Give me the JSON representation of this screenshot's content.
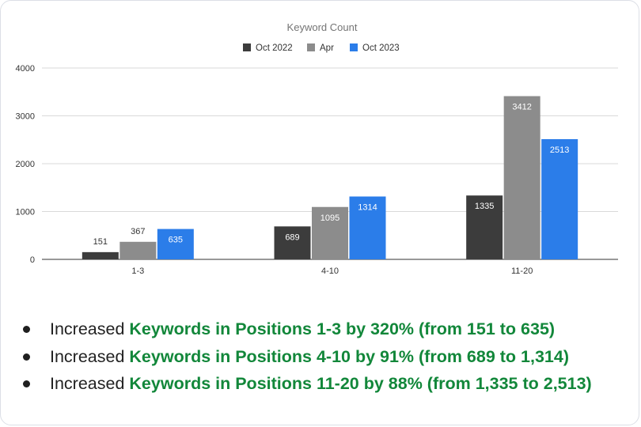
{
  "chart_data": {
    "type": "bar",
    "title": "Keyword Count",
    "xlabel": "",
    "ylabel": "",
    "categories": [
      "1-3",
      "4-10",
      "11-20"
    ],
    "series": [
      {
        "name": "Oct 2022",
        "color": "#3c3c3c",
        "values": [
          151,
          689,
          1335
        ]
      },
      {
        "name": "Apr",
        "color": "#8c8c8c",
        "values": [
          367,
          1095,
          3412
        ]
      },
      {
        "name": "Oct 2023",
        "color": "#2b7de9",
        "values": [
          635,
          1314,
          2513
        ]
      }
    ],
    "ylim": [
      0,
      4000
    ],
    "yticks": [
      0,
      1000,
      2000,
      3000,
      4000
    ],
    "grid": true,
    "legend": "top"
  },
  "colors": {
    "highlight": "#12873a",
    "text": "#222222"
  },
  "bullets": [
    {
      "prefix": "Increased ",
      "highlight": "Keywords in Positions 1-3 by 320% (from 151 to 635)"
    },
    {
      "prefix": "Increased ",
      "highlight": "Keywords in Positions 4-10 by 91% (from 689 to 1,314)"
    },
    {
      "prefix": "Increased ",
      "highlight": "Keywords in Positions 11-20 by 88% (from 1,335 to 2,513)"
    }
  ]
}
